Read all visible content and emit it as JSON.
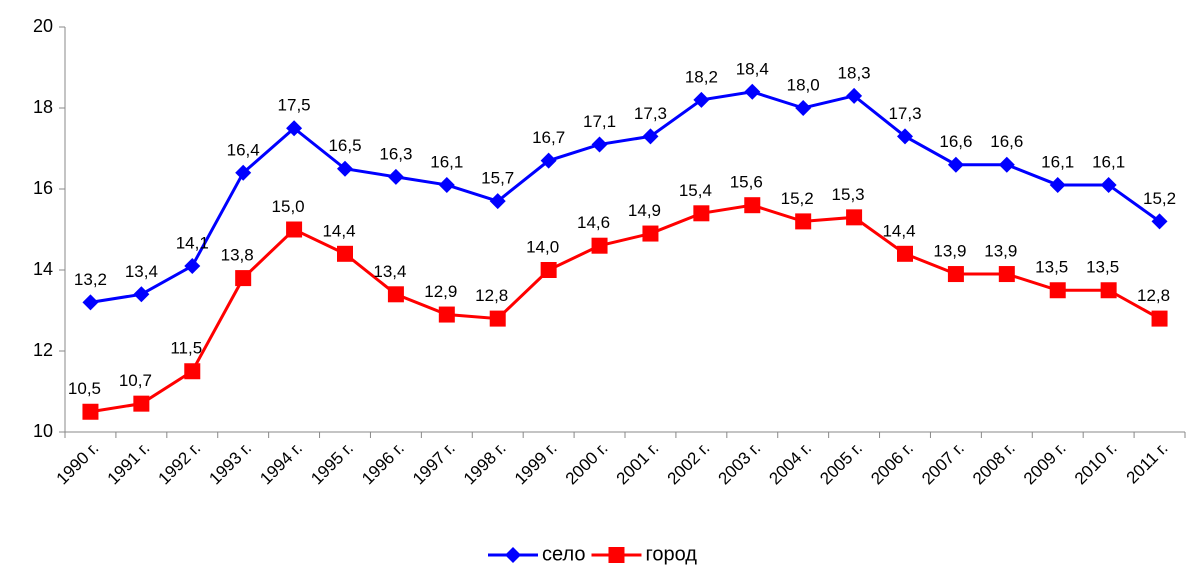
{
  "chart_data": {
    "type": "line",
    "categories": [
      "1990 г.",
      "1991 г.",
      "1992 г.",
      "1993 г.",
      "1994 г.",
      "1995 г.",
      "1996 г.",
      "1997 г.",
      "1998 г.",
      "1999 г.",
      "2000 г.",
      "2001 г.",
      "2002 г.",
      "2003 г.",
      "2004 г.",
      "2005 г.",
      "2006 г.",
      "2007 г.",
      "2008 г.",
      "2009 г.",
      "2010 г.",
      "2011 г."
    ],
    "series": [
      {
        "name": "село",
        "color": "#0000ff",
        "marker": "diamond",
        "values": [
          13.2,
          13.4,
          14.1,
          16.4,
          17.5,
          16.5,
          16.3,
          16.1,
          15.7,
          16.7,
          17.1,
          17.3,
          18.2,
          18.4,
          18.0,
          18.3,
          17.3,
          16.6,
          16.6,
          16.1,
          16.1,
          15.2
        ],
        "value_labels": [
          "13,2",
          "13,4",
          "14,1",
          "16,4",
          "17,5",
          "16,5",
          "16,3",
          "16,1",
          "15,7",
          "16,7",
          "17,1",
          "17,3",
          "18,2",
          "18,4",
          "18,0",
          "18,3",
          "17,3",
          "16,6",
          "16,6",
          "16,1",
          "16,1",
          "15,2"
        ]
      },
      {
        "name": "город",
        "color": "#ff0000",
        "marker": "square",
        "values": [
          10.5,
          10.7,
          11.5,
          13.8,
          15.0,
          14.4,
          13.4,
          12.9,
          12.8,
          14.0,
          14.6,
          14.9,
          15.4,
          15.6,
          15.2,
          15.3,
          14.4,
          13.9,
          13.9,
          13.5,
          13.5,
          12.8
        ],
        "value_labels": [
          "10,5",
          "10,7",
          "11,5",
          "13,8",
          "15,0",
          "14,4",
          "13,4",
          "12,9",
          "12,8",
          "14,0",
          "14,6",
          "14,9",
          "15,4",
          "15,6",
          "15,2",
          "15,3",
          "14,4",
          "13,9",
          "13,9",
          "13,5",
          "13,5",
          "12,8"
        ]
      }
    ],
    "ylim": [
      10,
      20
    ],
    "yticks": [
      10,
      12,
      14,
      16,
      18,
      20
    ],
    "grid": false,
    "legend": "bottom"
  }
}
